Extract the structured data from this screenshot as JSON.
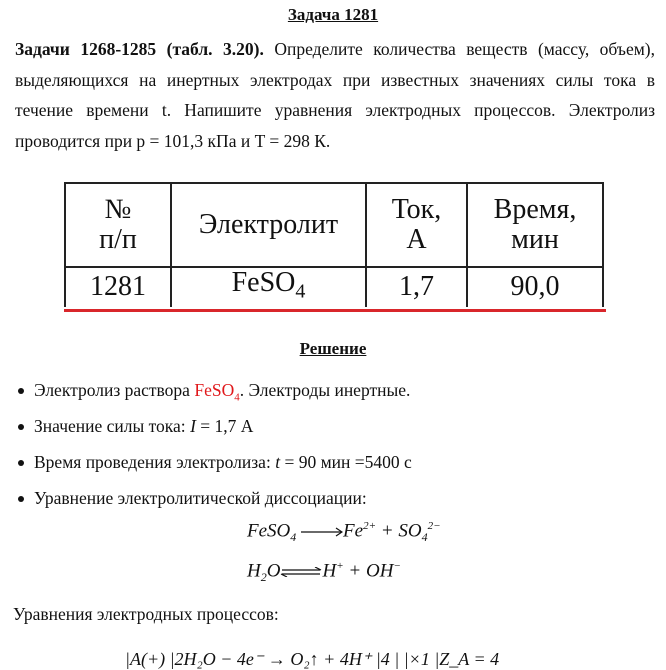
{
  "title": "Задача 1281",
  "problem": {
    "bold_lead": "Задачи 1268-1285 (табл. 3.20).",
    "text": " Определите количества веществ (массу, объем), выделяющихся на инертных электродах при известных значениях силы тока в течение времени t. Напишите уравнения электродных процессов. Электролиз проводится при p = 101,3 кПа и T = 298 К."
  },
  "table": {
    "headers": [
      [
        "№",
        "п/п"
      ],
      [
        "Электролит"
      ],
      [
        "Ток,",
        "А"
      ],
      [
        "Время,",
        "мин"
      ]
    ],
    "row": {
      "num": "1281",
      "electrolyte": "FeSO",
      "electrolyte_sub": "4",
      "current": "1,7",
      "time": "90,0"
    }
  },
  "accent_color": "#e0181b",
  "solution": {
    "title": "Решение",
    "bullets": {
      "b1_pre": "Электролиз раствора ",
      "b1_red": "FeSO",
      "b1_red_sub": "4",
      "b1_post": ". Электроды инертные.",
      "b2_pre": "Значение силы тока: ",
      "b2_var": "I",
      "b2_post": " = 1,7 А",
      "b3_pre": "Время проведения электролиза: ",
      "b3_var": "t",
      "b3_post": " = 90 мин =5400 с",
      "b4": "Уравнение электролитической диссоциации:"
    },
    "eq1": {
      "left": "FeSO",
      "left_sub": "4",
      "r1": "Fe",
      "r1_sup": "2+",
      "plus": " + ",
      "r2": "SO",
      "r2_sub": "4",
      "r2_sup": "2−"
    },
    "eq2": {
      "left": "H",
      "left_sub": "2",
      "left2": "O",
      "r1": "H",
      "r1_sup": "+",
      "plus": " + ",
      "r2": "OH",
      "r2_sup": "−"
    },
    "electrode_title": "Уравнения электродных процессов:",
    "anode_line": "|A(+)  |2H₂O − 4e⁻ → O₂↑ + 4H⁺ |4 |   |×1    |Z_A = 4"
  }
}
